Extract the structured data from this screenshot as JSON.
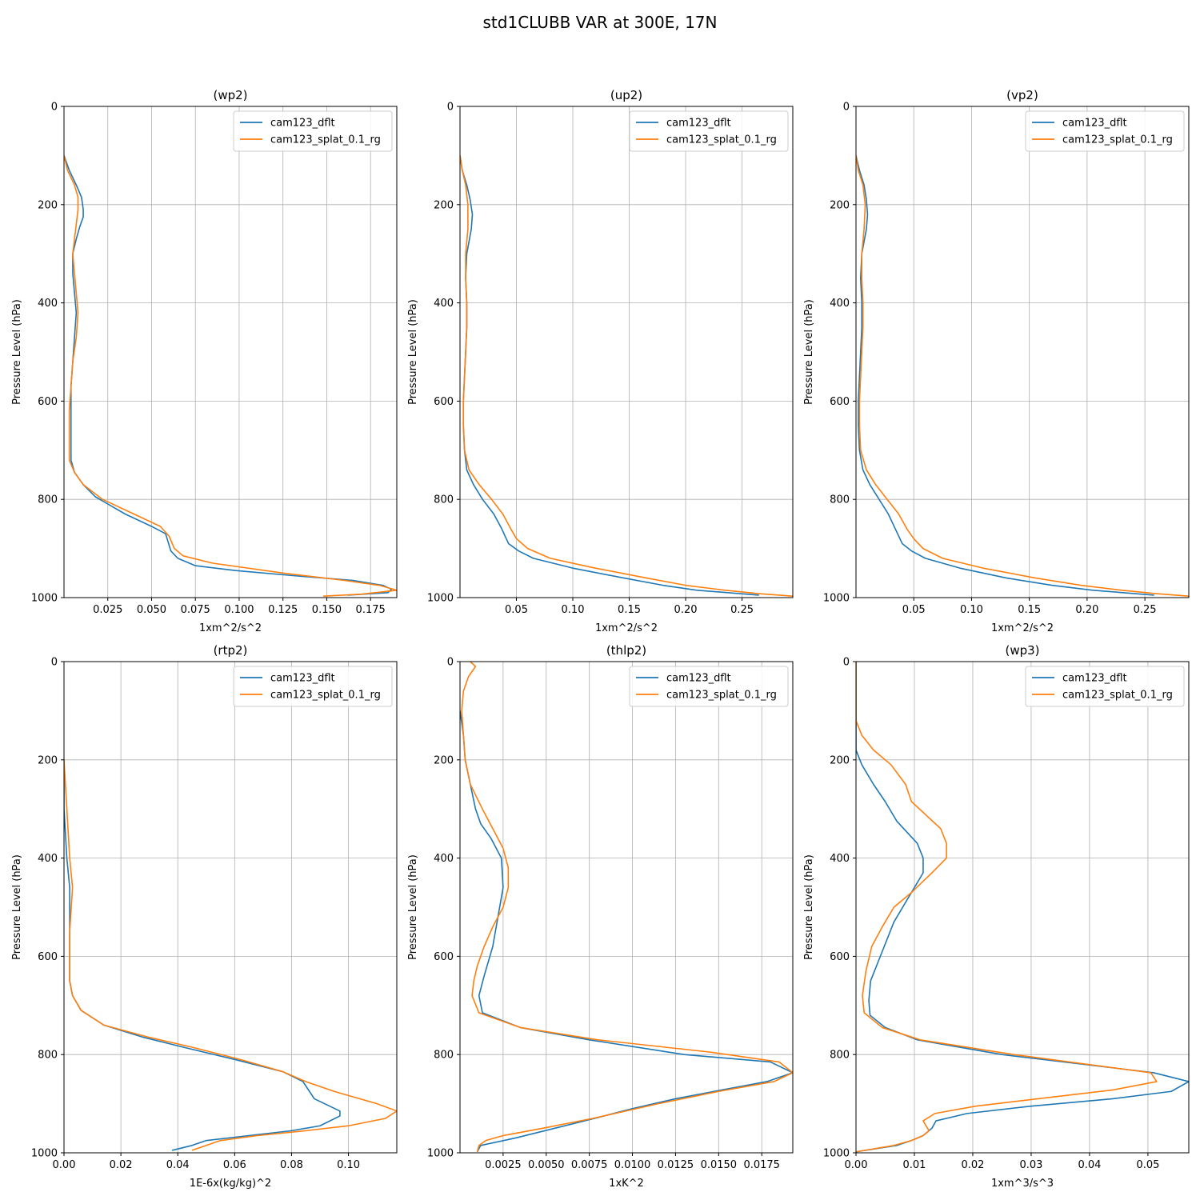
{
  "figure": {
    "title": "std1CLUBB VAR at 300E, 17N"
  },
  "colors": {
    "cam123_dflt": "#1f77b4",
    "cam123_splat_0.1_rg": "#ff7f0e",
    "grid": "#b0b0b0"
  },
  "chart_data": [
    {
      "type": "line",
      "title": "(wp2)",
      "xlabel": "1xm^2/s^2",
      "ylabel": "Pressure Level (hPa)",
      "xlim": [
        0.0,
        0.19
      ],
      "ylim": [
        1000,
        0
      ],
      "xticks": [
        0.025,
        0.05,
        0.075,
        0.1,
        0.125,
        0.15,
        0.175
      ],
      "xtick_labels": [
        "0.025",
        "0.050",
        "0.075",
        "0.100",
        "0.125",
        "0.150",
        "0.175"
      ],
      "yticks": [
        0,
        200,
        400,
        600,
        800,
        1000
      ],
      "ytick_labels": [
        "0",
        "200",
        "400",
        "600",
        "800",
        "1000"
      ],
      "grid": true,
      "legend": "top-right",
      "series": [
        {
          "name": "cam123_dflt",
          "color": "#1f77b4",
          "p": [
            100,
            130,
            160,
            185,
            210,
            225,
            245,
            270,
            300,
            340,
            380,
            420,
            470,
            520,
            570,
            620,
            680,
            720,
            745,
            770,
            795,
            830,
            855,
            870,
            905,
            920,
            935,
            945,
            955,
            965,
            975,
            983,
            990,
            995
          ],
          "x": [
            0.0,
            0.003,
            0.007,
            0.01,
            0.011,
            0.011,
            0.009,
            0.007,
            0.005,
            0.005,
            0.006,
            0.007,
            0.006,
            0.005,
            0.004,
            0.004,
            0.004,
            0.004,
            0.006,
            0.011,
            0.018,
            0.035,
            0.05,
            0.058,
            0.061,
            0.065,
            0.075,
            0.098,
            0.13,
            0.165,
            0.182,
            0.187,
            0.185,
            0.162
          ]
        },
        {
          "name": "cam123_splat_0.1_rg",
          "color": "#ff7f0e",
          "p": [
            100,
            130,
            160,
            185,
            210,
            240,
            270,
            300,
            340,
            380,
            420,
            470,
            520,
            570,
            620,
            680,
            720,
            745,
            770,
            800,
            830,
            855,
            875,
            900,
            915,
            930,
            950,
            965,
            975,
            985,
            993,
            997
          ],
          "x": [
            0.0,
            0.002,
            0.006,
            0.008,
            0.008,
            0.007,
            0.006,
            0.005,
            0.006,
            0.007,
            0.008,
            0.007,
            0.005,
            0.004,
            0.003,
            0.003,
            0.003,
            0.006,
            0.011,
            0.022,
            0.04,
            0.055,
            0.06,
            0.063,
            0.068,
            0.085,
            0.125,
            0.16,
            0.18,
            0.19,
            0.17,
            0.148
          ]
        }
      ]
    },
    {
      "type": "line",
      "title": "(up2)",
      "xlabel": "1xm^2/s^2",
      "ylabel": "Pressure Level (hPa)",
      "xlim": [
        0.0,
        0.295
      ],
      "ylim": [
        1000,
        0
      ],
      "xticks": [
        0.05,
        0.1,
        0.15,
        0.2,
        0.25
      ],
      "xtick_labels": [
        "0.05",
        "0.10",
        "0.15",
        "0.20",
        "0.25"
      ],
      "yticks": [
        0,
        200,
        400,
        600,
        800,
        1000
      ],
      "ytick_labels": [
        "0",
        "200",
        "400",
        "600",
        "800",
        "1000"
      ],
      "grid": true,
      "legend": "top-right",
      "series": [
        {
          "name": "cam123_dflt",
          "color": "#1f77b4",
          "p": [
            100,
            130,
            160,
            190,
            220,
            250,
            300,
            350,
            400,
            450,
            500,
            550,
            600,
            650,
            700,
            740,
            770,
            800,
            830,
            860,
            890,
            905,
            920,
            940,
            960,
            975,
            985,
            995
          ],
          "x": [
            0.0,
            0.002,
            0.006,
            0.009,
            0.011,
            0.01,
            0.006,
            0.005,
            0.006,
            0.006,
            0.005,
            0.004,
            0.003,
            0.003,
            0.004,
            0.006,
            0.012,
            0.02,
            0.03,
            0.037,
            0.043,
            0.052,
            0.065,
            0.1,
            0.145,
            0.18,
            0.21,
            0.265
          ]
        },
        {
          "name": "cam123_splat_0.1_rg",
          "color": "#ff7f0e",
          "p": [
            100,
            130,
            160,
            200,
            250,
            300,
            350,
            400,
            450,
            500,
            550,
            600,
            650,
            700,
            740,
            770,
            800,
            830,
            860,
            880,
            900,
            920,
            940,
            960,
            975,
            985,
            992,
            997
          ],
          "x": [
            0.0,
            0.002,
            0.005,
            0.007,
            0.007,
            0.005,
            0.005,
            0.006,
            0.006,
            0.005,
            0.004,
            0.003,
            0.003,
            0.004,
            0.008,
            0.017,
            0.028,
            0.038,
            0.045,
            0.05,
            0.06,
            0.08,
            0.12,
            0.165,
            0.2,
            0.235,
            0.265,
            0.295
          ]
        }
      ]
    },
    {
      "type": "line",
      "title": "(vp2)",
      "xlabel": "1xm^2/s^2",
      "ylabel": "Pressure Level (hPa)",
      "xlim": [
        0.0,
        0.288
      ],
      "ylim": [
        1000,
        0
      ],
      "xticks": [
        0.05,
        0.1,
        0.15,
        0.2,
        0.25
      ],
      "xtick_labels": [
        "0.05",
        "0.10",
        "0.15",
        "0.20",
        "0.25"
      ],
      "yticks": [
        0,
        200,
        400,
        600,
        800,
        1000
      ],
      "ytick_labels": [
        "0",
        "200",
        "400",
        "600",
        "800",
        "1000"
      ],
      "grid": true,
      "legend": "top-right",
      "series": [
        {
          "name": "cam123_dflt",
          "color": "#1f77b4",
          "p": [
            100,
            130,
            160,
            190,
            220,
            250,
            300,
            350,
            400,
            450,
            500,
            550,
            600,
            650,
            700,
            740,
            770,
            800,
            830,
            860,
            890,
            905,
            920,
            940,
            960,
            975,
            985,
            995
          ],
          "x": [
            0.0,
            0.003,
            0.007,
            0.009,
            0.01,
            0.009,
            0.005,
            0.004,
            0.005,
            0.005,
            0.004,
            0.003,
            0.002,
            0.002,
            0.003,
            0.006,
            0.012,
            0.02,
            0.028,
            0.034,
            0.04,
            0.048,
            0.06,
            0.09,
            0.13,
            0.17,
            0.205,
            0.258
          ]
        },
        {
          "name": "cam123_splat_0.1_rg",
          "color": "#ff7f0e",
          "p": [
            100,
            130,
            160,
            200,
            250,
            300,
            350,
            400,
            450,
            500,
            550,
            600,
            650,
            700,
            740,
            770,
            800,
            830,
            860,
            880,
            900,
            920,
            940,
            960,
            975,
            985,
            992,
            997
          ],
          "x": [
            0.0,
            0.002,
            0.006,
            0.008,
            0.007,
            0.005,
            0.005,
            0.006,
            0.006,
            0.005,
            0.004,
            0.003,
            0.003,
            0.004,
            0.009,
            0.017,
            0.027,
            0.037,
            0.044,
            0.05,
            0.058,
            0.075,
            0.11,
            0.155,
            0.195,
            0.23,
            0.26,
            0.288
          ]
        }
      ]
    },
    {
      "type": "line",
      "title": "(rtp2)",
      "xlabel": "1E-6x(kg/kg)^2",
      "ylabel": "Pressure Level (hPa)",
      "xlim": [
        0.0,
        0.117
      ],
      "ylim": [
        1000,
        0
      ],
      "xticks": [
        0.0,
        0.02,
        0.04,
        0.06,
        0.08,
        0.1
      ],
      "xtick_labels": [
        "0.00",
        "0.02",
        "0.04",
        "0.06",
        "0.08",
        "0.10"
      ],
      "yticks": [
        0,
        200,
        400,
        600,
        800,
        1000
      ],
      "ytick_labels": [
        "0",
        "200",
        "400",
        "600",
        "800",
        "1000"
      ],
      "grid": true,
      "legend": "top-right",
      "series": [
        {
          "name": "cam123_dflt",
          "color": "#1f77b4",
          "p": [
            200,
            300,
            400,
            460,
            550,
            650,
            680,
            710,
            740,
            765,
            785,
            810,
            835,
            855,
            890,
            915,
            925,
            945,
            955,
            965,
            975,
            985,
            995
          ],
          "x": [
            0.0,
            0.0,
            0.001,
            0.002,
            0.002,
            0.002,
            0.003,
            0.006,
            0.014,
            0.028,
            0.042,
            0.06,
            0.077,
            0.084,
            0.088,
            0.097,
            0.097,
            0.09,
            0.08,
            0.065,
            0.05,
            0.045,
            0.038
          ]
        },
        {
          "name": "cam123_splat_0.1_rg",
          "color": "#ff7f0e",
          "p": [
            200,
            300,
            400,
            460,
            550,
            650,
            680,
            710,
            740,
            765,
            785,
            810,
            835,
            855,
            875,
            900,
            915,
            930,
            945,
            955,
            965,
            975,
            985,
            995
          ],
          "x": [
            0.0,
            0.001,
            0.002,
            0.003,
            0.002,
            0.002,
            0.003,
            0.006,
            0.014,
            0.03,
            0.045,
            0.062,
            0.077,
            0.085,
            0.095,
            0.11,
            0.117,
            0.113,
            0.1,
            0.085,
            0.068,
            0.055,
            0.05,
            0.045
          ]
        }
      ]
    },
    {
      "type": "line",
      "title": "(thlp2)",
      "xlabel": "1xK^2",
      "ylabel": "Pressure Level (hPa)",
      "xlim": [
        0.0,
        0.0193
      ],
      "ylim": [
        1000,
        0
      ],
      "xticks": [
        0.0025,
        0.005,
        0.0075,
        0.01,
        0.0125,
        0.015,
        0.0175
      ],
      "xtick_labels": [
        "0.0025",
        "0.0050",
        "0.0075",
        "0.0100",
        "0.0125",
        "0.0150",
        "0.0175"
      ],
      "yticks": [
        0,
        200,
        400,
        600,
        800,
        1000
      ],
      "ytick_labels": [
        "0",
        "200",
        "400",
        "600",
        "800",
        "1000"
      ],
      "grid": true,
      "legend": "top-right",
      "series": [
        {
          "name": "cam123_dflt",
          "color": "#1f77b4",
          "p": [
            100,
            150,
            200,
            250,
            300,
            330,
            360,
            400,
            460,
            520,
            580,
            640,
            680,
            715,
            745,
            770,
            800,
            815,
            837,
            855,
            870,
            890,
            910,
            930,
            950,
            970,
            985,
            998
          ],
          "x": [
            0.0,
            0.0002,
            0.0003,
            0.0006,
            0.0009,
            0.0012,
            0.0018,
            0.0024,
            0.0025,
            0.0022,
            0.0019,
            0.0014,
            0.0011,
            0.0013,
            0.0035,
            0.0075,
            0.013,
            0.018,
            0.0193,
            0.0178,
            0.0155,
            0.0125,
            0.01,
            0.0078,
            0.0055,
            0.0032,
            0.0012,
            0.001
          ]
        },
        {
          "name": "cam123_splat_0.1_rg",
          "color": "#ff7f0e",
          "p": [
            0,
            10,
            30,
            60,
            100,
            150,
            200,
            250,
            300,
            340,
            380,
            420,
            460,
            500,
            540,
            580,
            620,
            650,
            680,
            715,
            745,
            770,
            795,
            815,
            837,
            855,
            875,
            900,
            930,
            950,
            965,
            975,
            985,
            998
          ],
          "x": [
            0.0006,
            0.0009,
            0.0005,
            0.0002,
            0.0001,
            0.0002,
            0.0003,
            0.0006,
            0.0013,
            0.0019,
            0.0025,
            0.0028,
            0.0028,
            0.0025,
            0.0019,
            0.0014,
            0.001,
            0.0008,
            0.0007,
            0.0011,
            0.0035,
            0.008,
            0.0145,
            0.0185,
            0.0193,
            0.0182,
            0.015,
            0.0115,
            0.0077,
            0.0048,
            0.0025,
            0.0015,
            0.0011,
            0.001
          ]
        }
      ]
    },
    {
      "type": "line",
      "title": "(wp3)",
      "xlabel": "1xm^3/s^3",
      "ylabel": "Pressure Level (hPa)",
      "xlim": [
        0.0,
        0.057
      ],
      "ylim": [
        1000,
        0
      ],
      "xticks": [
        0.0,
        0.01,
        0.02,
        0.03,
        0.04,
        0.05
      ],
      "xtick_labels": [
        "0.00",
        "0.01",
        "0.02",
        "0.03",
        "0.04",
        "0.05"
      ],
      "yticks": [
        0,
        200,
        400,
        600,
        800,
        1000
      ],
      "ytick_labels": [
        "0",
        "200",
        "400",
        "600",
        "800",
        "1000"
      ],
      "grid": true,
      "legend": "top-right",
      "series": [
        {
          "name": "cam123_dflt",
          "color": "#1f77b4",
          "p": [
            0,
            180,
            210,
            250,
            285,
            325,
            370,
            400,
            430,
            470,
            530,
            590,
            650,
            690,
            720,
            745,
            770,
            800,
            837,
            855,
            875,
            890,
            905,
            920,
            935,
            950,
            965,
            975,
            985,
            998
          ],
          "x": [
            0.0,
            0.0,
            0.001,
            0.003,
            0.005,
            0.007,
            0.0105,
            0.0115,
            0.0115,
            0.0095,
            0.0065,
            0.0045,
            0.0025,
            0.0022,
            0.0024,
            0.005,
            0.0105,
            0.025,
            0.051,
            0.057,
            0.054,
            0.044,
            0.03,
            0.019,
            0.0137,
            0.013,
            0.0115,
            0.0095,
            0.007,
            0.0
          ]
        },
        {
          "name": "cam123_splat_0.1_rg",
          "color": "#ff7f0e",
          "p": [
            0,
            120,
            150,
            180,
            210,
            250,
            285,
            340,
            370,
            400,
            430,
            470,
            500,
            540,
            580,
            630,
            680,
            715,
            745,
            770,
            800,
            837,
            855,
            872,
            905,
            920,
            935,
            955,
            965,
            975,
            985,
            998
          ],
          "x": [
            0.0,
            0.0,
            0.001,
            0.003,
            0.006,
            0.0085,
            0.0095,
            0.0145,
            0.0155,
            0.0155,
            0.013,
            0.0095,
            0.0065,
            0.0045,
            0.0027,
            0.0017,
            0.0011,
            0.0014,
            0.0045,
            0.011,
            0.027,
            0.0505,
            0.0515,
            0.044,
            0.0205,
            0.0135,
            0.0115,
            0.0125,
            0.0115,
            0.0095,
            0.0065,
            0.0
          ]
        }
      ]
    }
  ]
}
